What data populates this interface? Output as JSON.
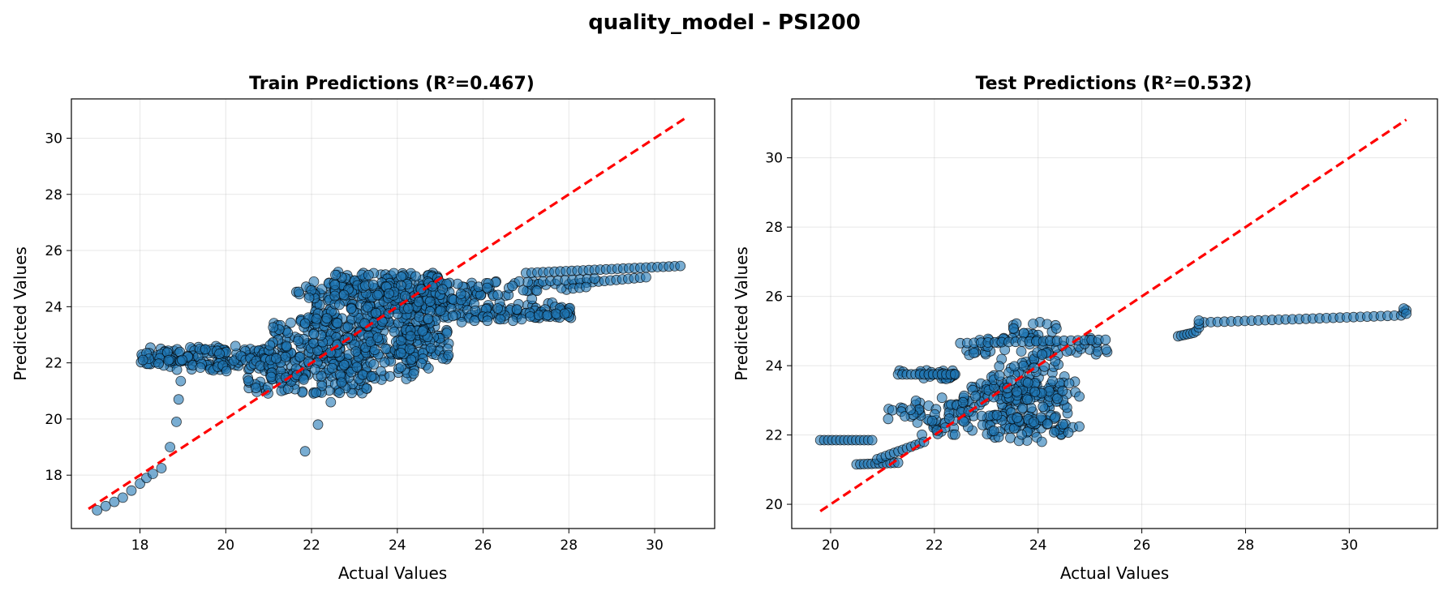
{
  "figure": {
    "title": "quality_model - PSI200",
    "point_color": "#1f77b4",
    "reference_line_color": "#ff0000"
  },
  "chart_data": [
    {
      "type": "scatter",
      "title": "Train Predictions (R²=0.467)",
      "xlabel": "Actual Values",
      "ylabel": "Predicted Values",
      "xlim": [
        16.4,
        31.4
      ],
      "ylim": [
        16.1,
        31.4
      ],
      "xticks": [
        18,
        20,
        22,
        24,
        26,
        28,
        30
      ],
      "yticks": [
        18,
        20,
        22,
        24,
        26,
        28,
        30
      ],
      "grid": true,
      "reference_line": {
        "from": [
          16.8,
          16.8
        ],
        "to": [
          30.7,
          30.7
        ]
      },
      "scatter_points": [
        [
          17.0,
          16.75
        ],
        [
          17.2,
          16.9
        ],
        [
          17.4,
          17.05
        ],
        [
          17.6,
          17.2
        ],
        [
          17.8,
          17.45
        ],
        [
          18.0,
          17.7
        ],
        [
          18.15,
          17.9
        ],
        [
          18.3,
          18.05
        ],
        [
          18.5,
          18.25
        ],
        [
          18.7,
          19.0
        ],
        [
          18.85,
          19.9
        ],
        [
          18.9,
          20.7
        ],
        [
          18.95,
          21.35
        ],
        [
          21.85,
          18.85
        ],
        [
          22.15,
          19.8
        ],
        [
          22.45,
          20.6
        ],
        [
          22.7,
          21.3
        ],
        [
          26.7,
          23.5
        ],
        [
          26.9,
          23.55
        ],
        [
          27.1,
          23.65
        ],
        [
          27.3,
          23.7
        ],
        [
          27.5,
          23.7
        ],
        [
          27.7,
          23.75
        ],
        [
          27.9,
          23.75
        ],
        [
          25.5,
          23.45
        ],
        [
          25.8,
          23.5
        ],
        [
          26.1,
          23.5
        ],
        [
          26.4,
          23.55
        ]
      ],
      "scatter_clusters": [
        {
          "x": [
            18.0,
            20.8
          ],
          "y": [
            21.75,
            22.6
          ],
          "n": 75
        },
        {
          "x": [
            18.0,
            19.6
          ],
          "y": [
            21.9,
            22.4
          ],
          "n": 35
        },
        {
          "x": [
            19.3,
            21.5
          ],
          "y": [
            21.7,
            22.5
          ],
          "n": 55
        },
        {
          "x": [
            20.5,
            23.4
          ],
          "y": [
            20.9,
            22.4
          ],
          "n": 140
        },
        {
          "x": [
            21.0,
            24.6
          ],
          "y": [
            21.4,
            23.6
          ],
          "n": 210
        },
        {
          "x": [
            22.0,
            25.2
          ],
          "y": [
            22.3,
            24.6
          ],
          "n": 210
        },
        {
          "x": [
            21.5,
            24.8
          ],
          "y": [
            23.4,
            24.9
          ],
          "n": 110
        },
        {
          "x": [
            22.5,
            25.0
          ],
          "y": [
            24.3,
            25.25
          ],
          "n": 110
        },
        {
          "x": [
            23.5,
            26.2
          ],
          "y": [
            23.6,
            24.9
          ],
          "n": 90
        },
        {
          "x": [
            24.5,
            28.0
          ],
          "y": [
            23.55,
            24.9
          ],
          "n": 100
        },
        {
          "x": [
            25.8,
            28.1
          ],
          "y": [
            23.6,
            23.95
          ],
          "n": 45
        },
        {
          "x": [
            24.0,
            25.2
          ],
          "y": [
            21.8,
            23.2
          ],
          "n": 40
        }
      ],
      "scatter_lines": [
        {
          "from": [
            27.0,
            25.2
          ],
          "to": [
            30.6,
            25.45
          ],
          "n": 28
        },
        {
          "from": [
            28.0,
            24.8
          ],
          "to": [
            29.8,
            25.05
          ],
          "n": 14
        },
        {
          "from": [
            27.4,
            24.9
          ],
          "to": [
            28.6,
            25.0
          ],
          "n": 8
        },
        {
          "from": [
            28.1,
            24.65
          ],
          "to": [
            28.4,
            24.7
          ],
          "n": 3
        }
      ]
    },
    {
      "type": "scatter",
      "title": "Test Predictions (R²=0.532)",
      "xlabel": "Actual Values",
      "ylabel": "Predicted Values",
      "xlim": [
        19.25,
        31.7
      ],
      "ylim": [
        19.3,
        31.7
      ],
      "xticks": [
        20,
        22,
        24,
        26,
        28,
        30
      ],
      "yticks": [
        20,
        22,
        24,
        26,
        28,
        30
      ],
      "grid": true,
      "reference_line": {
        "from": [
          19.8,
          19.8
        ],
        "to": [
          31.1,
          31.1
        ]
      },
      "scatter_points": [
        [
          27.05,
          25.0
        ],
        [
          27.1,
          25.1
        ],
        [
          27.1,
          25.2
        ],
        [
          27.1,
          25.3
        ],
        [
          31.05,
          25.55
        ],
        [
          31.1,
          25.6
        ],
        [
          31.05,
          25.65
        ],
        [
          31.1,
          25.5
        ]
      ],
      "scatter_clusters": [
        {
          "x": [
            21.3,
            22.4
          ],
          "y": [
            23.6,
            23.9
          ],
          "n": 25
        },
        {
          "x": [
            21.6,
            22.8
          ],
          "y": [
            21.9,
            23.1
          ],
          "n": 40
        },
        {
          "x": [
            21.0,
            22.5
          ],
          "y": [
            22.4,
            22.9
          ],
          "n": 25
        },
        {
          "x": [
            22.5,
            24.5
          ],
          "y": [
            22.0,
            23.5
          ],
          "n": 95
        },
        {
          "x": [
            23.0,
            24.6
          ],
          "y": [
            22.3,
            24.2
          ],
          "n": 80
        },
        {
          "x": [
            23.5,
            24.4
          ],
          "y": [
            23.8,
            25.3
          ],
          "n": 40
        },
        {
          "x": [
            22.5,
            25.4
          ],
          "y": [
            24.3,
            24.8
          ],
          "n": 45
        },
        {
          "x": [
            22.8,
            24.9
          ],
          "y": [
            21.8,
            22.6
          ],
          "n": 40
        },
        {
          "x": [
            23.3,
            24.8
          ],
          "y": [
            23.0,
            23.6
          ],
          "n": 35
        }
      ],
      "scatter_lines": [
        {
          "from": [
            19.8,
            21.85
          ],
          "to": [
            20.8,
            21.85
          ],
          "n": 14
        },
        {
          "from": [
            20.5,
            21.15
          ],
          "to": [
            21.3,
            21.2
          ],
          "n": 12
        },
        {
          "from": [
            20.9,
            21.3
          ],
          "to": [
            21.8,
            21.8
          ],
          "n": 12
        },
        {
          "from": [
            21.3,
            23.75
          ],
          "to": [
            22.4,
            23.75
          ],
          "n": 14
        },
        {
          "from": [
            22.5,
            24.65
          ],
          "to": [
            25.3,
            24.75
          ],
          "n": 22
        },
        {
          "from": [
            26.7,
            24.85
          ],
          "to": [
            27.0,
            24.95
          ],
          "n": 6
        },
        {
          "from": [
            27.2,
            25.25
          ],
          "to": [
            31.0,
            25.45
          ],
          "n": 30
        }
      ]
    }
  ]
}
